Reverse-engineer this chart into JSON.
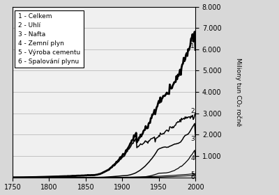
{
  "ylabel": "Miliony tun CO₂ ročně",
  "xmin": 1750,
  "xmax": 2000,
  "ymin": 0,
  "ymax": 8000,
  "yticks": [
    1000,
    2000,
    3000,
    4000,
    5000,
    6000,
    7000,
    8000
  ],
  "xticks": [
    1750,
    1800,
    1850,
    1900,
    1950,
    2000
  ],
  "legend_entries": [
    "1 - Celkem",
    "2 - Uhlí",
    "3 - Nafta",
    "4 - Zemní plyn",
    "5 - Výroba cementu",
    "6 - Spalování plynu"
  ],
  "background_color": "#d8d8d8",
  "plot_bg_color": "#f0f0f0"
}
